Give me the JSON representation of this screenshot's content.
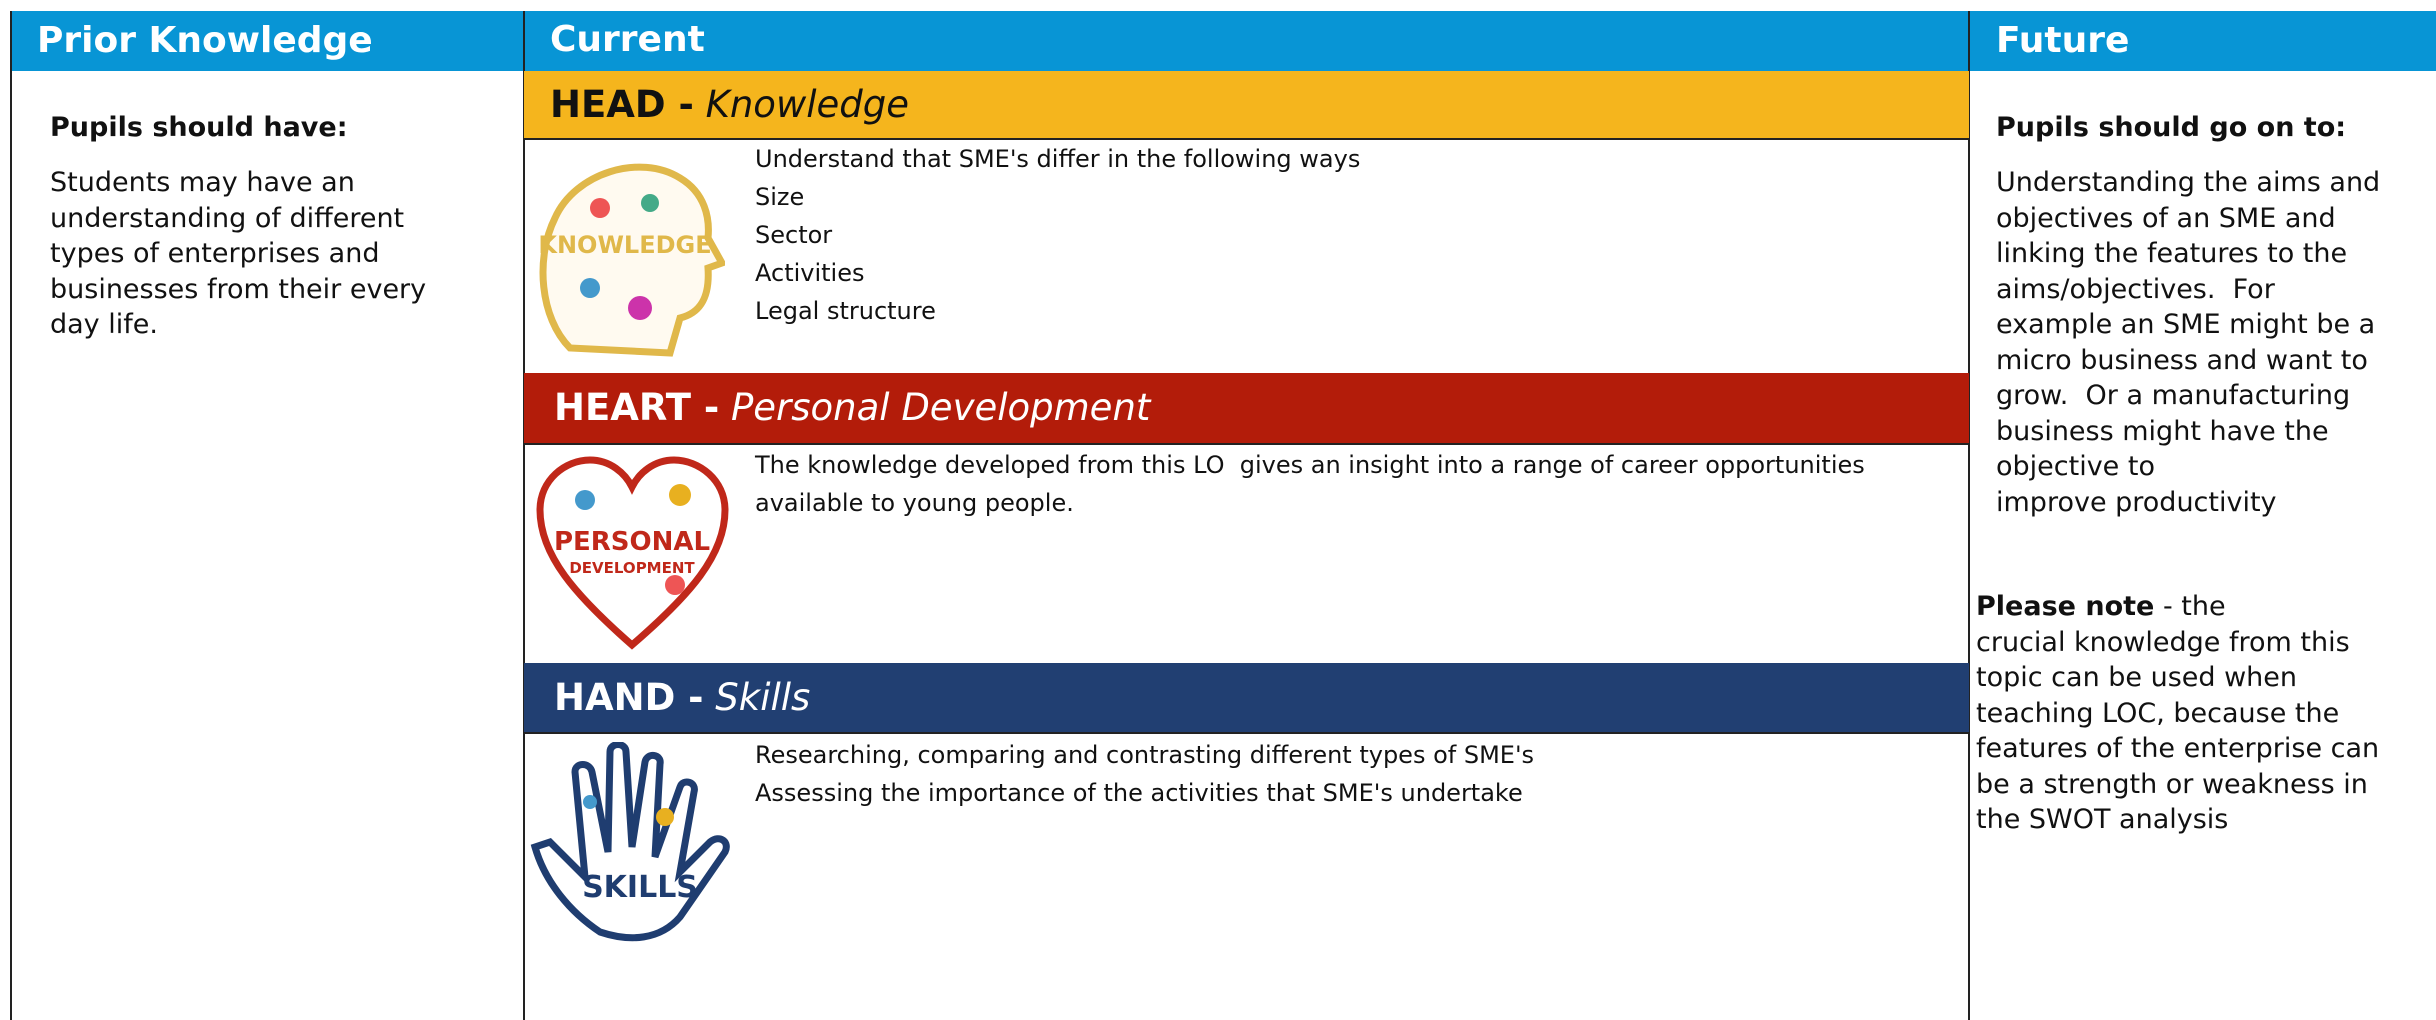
{
  "prior": {
    "header": "Prior Knowledge",
    "subheading": "Pupils should have:",
    "lines": [
      "Students may have an",
      "understanding of different",
      "types of enterprises and",
      "businesses from their every",
      "day life."
    ]
  },
  "current": {
    "header": "Current",
    "sections": [
      {
        "title": "HEAD -",
        "subtitle": "Knowledge",
        "icon_label": "KNOWLEDGE",
        "lines": [
          "Understand that SME's differ in the following ways",
          "Size",
          "Sector",
          "Activities",
          "Legal structure"
        ]
      },
      {
        "title": "HEART -",
        "subtitle": "Personal Development",
        "icon_label": [
          "PERSONAL",
          "DEVELOPMENT"
        ],
        "lines": [
          "The knowledge developed from this LO  gives an insight into a range of career opportunities",
          "available to young people."
        ]
      },
      {
        "title": "HAND -",
        "subtitle": "Skills",
        "icon_label": "SKILLS",
        "lines": [
          "Researching, comparing and contrasting different types of SME's",
          "Assessing the importance of the activities that SME's undertake"
        ]
      }
    ]
  },
  "future": {
    "header": "Future",
    "subheading": "Pupils should go on to:",
    "lines": [
      "Understanding the aims and",
      "objectives of an SME and",
      "linking the features to the",
      "aims/objectives.  For",
      "example an SME might be a",
      "micro business and want to",
      "grow.  Or a manufacturing",
      "business might have the",
      "objective to",
      "improve productivity"
    ],
    "note_label": "Please note",
    "note_lines": [
      " - the",
      "crucial knowledge from this",
      "topic can be used when",
      "teaching LOC, because the",
      "features of the enterprise can",
      "be a strength or weakness in",
      "the SWOT analysis"
    ]
  }
}
